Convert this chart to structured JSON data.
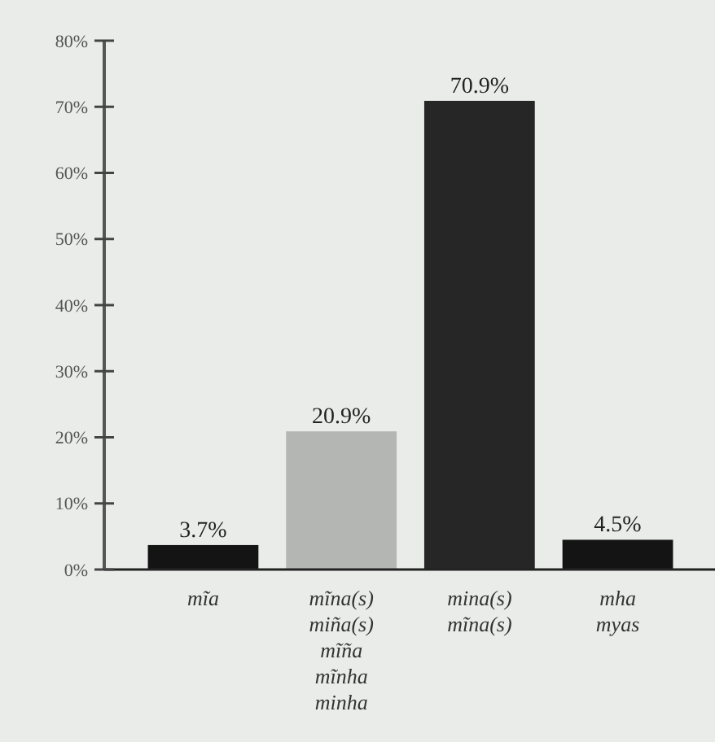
{
  "chart_data": {
    "type": "bar",
    "categories": [
      "mĩa",
      "mĩna(s)\nmiña(s)\nmĩña\nmĩnha\nminha",
      "mina(s)\nmĩna(s)",
      "mha\nmyas"
    ],
    "values": [
      3.7,
      20.9,
      70.9,
      4.5
    ],
    "colors": [
      "#141414",
      "#b4b6b4",
      "#262626",
      "#141414"
    ],
    "value_labels": [
      "3.7%",
      "20.9%",
      "70.9%",
      "4.5%"
    ],
    "ylim": [
      0,
      80
    ],
    "yticks": [
      {
        "value": 0,
        "label": "0%"
      },
      {
        "value": 10,
        "label": "10%"
      },
      {
        "value": 20,
        "label": "20%"
      },
      {
        "value": 30,
        "label": "30%"
      },
      {
        "value": 40,
        "label": "40%"
      },
      {
        "value": 50,
        "label": "50%"
      },
      {
        "value": 60,
        "label": "60%"
      },
      {
        "value": 70,
        "label": "70%"
      },
      {
        "value": 80,
        "label": "80%"
      }
    ],
    "grid": false
  }
}
